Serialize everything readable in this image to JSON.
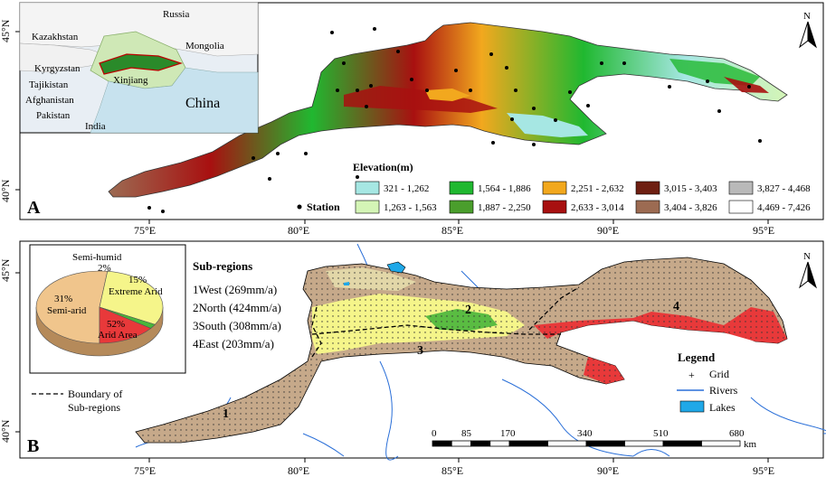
{
  "panel_a": {
    "label": "A",
    "lat_labels": [
      "45°N",
      "40°N"
    ],
    "lon_labels": [
      "75°E",
      "80°E",
      "85°E",
      "90°E",
      "95°E"
    ],
    "north_label": "N",
    "inset": {
      "countries": [
        "Russia",
        "Kazakhstan",
        "Mongolia",
        "Kyrgyzstan",
        "Xinjiang",
        "Tajikistan",
        "Afghanistan",
        "Pakistan",
        "India",
        "China"
      ]
    },
    "station_label": "Station",
    "elevation_legend": {
      "title": "Elevation(m)",
      "classes": [
        {
          "range": "321 - 1,262",
          "color": "#a6e7e3"
        },
        {
          "range": "1,263 - 1,563",
          "color": "#d4f5b6"
        },
        {
          "range": "1,564 - 1,886",
          "color": "#20b830"
        },
        {
          "range": "1,887 - 2,250",
          "color": "#4a9e2c"
        },
        {
          "range": "2,251 - 2,632",
          "color": "#f2a81e"
        },
        {
          "range": "2,633 - 3,014",
          "color": "#a81010"
        },
        {
          "range": "3,015 - 3,403",
          "color": "#6e1f12"
        },
        {
          "range": "3,404 - 3,826",
          "color": "#9c6b52"
        },
        {
          "range": "3,827 - 4,468",
          "color": "#b9b9b9"
        },
        {
          "range": "4,469 - 7,426",
          "color": "#ffffff"
        }
      ]
    }
  },
  "panel_b": {
    "label": "B",
    "lat_labels": [
      "45°N",
      "40°N"
    ],
    "lon_labels": [
      "75°E",
      "80°E",
      "85°E",
      "90°E",
      "95°E"
    ],
    "north_label": "N",
    "pie": {
      "slices": [
        {
          "name": "Arid Area",
          "percent": 52,
          "color": "#f0c58c"
        },
        {
          "name": "Semi-arid",
          "percent": 31,
          "color": "#f5f58a"
        },
        {
          "name": "Semi-humid",
          "percent": 2,
          "color": "#49b63a"
        },
        {
          "name": "Extreme Arid",
          "percent": 15,
          "color": "#e8393a"
        }
      ],
      "labels": {
        "semi_humid": "Semi-humid",
        "semi_humid_pct": "2%",
        "extreme_pct": "15%",
        "extreme": "Extreme Arid",
        "semiarid_pct": "31%",
        "semiarid": "Semi-arid",
        "arid_pct": "52%",
        "arid": "Arid Area"
      }
    },
    "subregions": {
      "title": "Sub-regions",
      "items": [
        "1West (269mm/a)",
        "2North (424mm/a)",
        "3South (308mm/a)",
        "4East (203mm/a)"
      ],
      "numbers": [
        "1",
        "2",
        "3",
        "4"
      ]
    },
    "boundary_label_1": "Boundary of",
    "boundary_label_2": "Sub-regions",
    "legend": {
      "title": "Legend",
      "grid": "Grid",
      "rivers": "Rivers",
      "lakes": "Lakes",
      "grid_symbol": "+"
    },
    "scale_bar": {
      "ticks": [
        "0",
        "85",
        "170",
        "340",
        "510",
        "680"
      ],
      "unit": "km"
    }
  }
}
